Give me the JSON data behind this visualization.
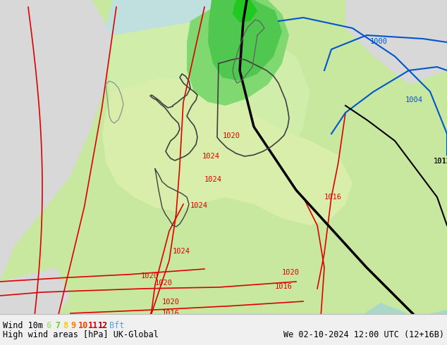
{
  "title_left": "High wind areas [hPa] UK-Global",
  "title_right": "We 02-10-2024 12:00 UTC (12+16B)",
  "subtitle_left": "Wind 10m",
  "legend_numbers": [
    "6",
    "7",
    "8",
    "9",
    "10",
    "11",
    "12"
  ],
  "legend_colors": [
    "#a8e080",
    "#70c830",
    "#f0d000",
    "#f08000",
    "#f04000",
    "#e00000",
    "#a00000"
  ],
  "legend_suffix": "Bft",
  "figsize": [
    6.34,
    4.9
  ],
  "dpi": 100,
  "land_color": "#c8e8a0",
  "sea_color_left": "#d8d8d8",
  "sea_color_right": "#c8e8d8",
  "green_light": "#b8e8b0",
  "green_medium": "#80d870",
  "green_dark": "#20c820",
  "isobar_red": "#dd0000",
  "isobar_blue": "#0055cc",
  "isobar_black": "#000000",
  "border_color": "#404040",
  "footer_bg": "#f0f0f0",
  "footer_line": "#aaaaaa",
  "text_color": "#000000"
}
